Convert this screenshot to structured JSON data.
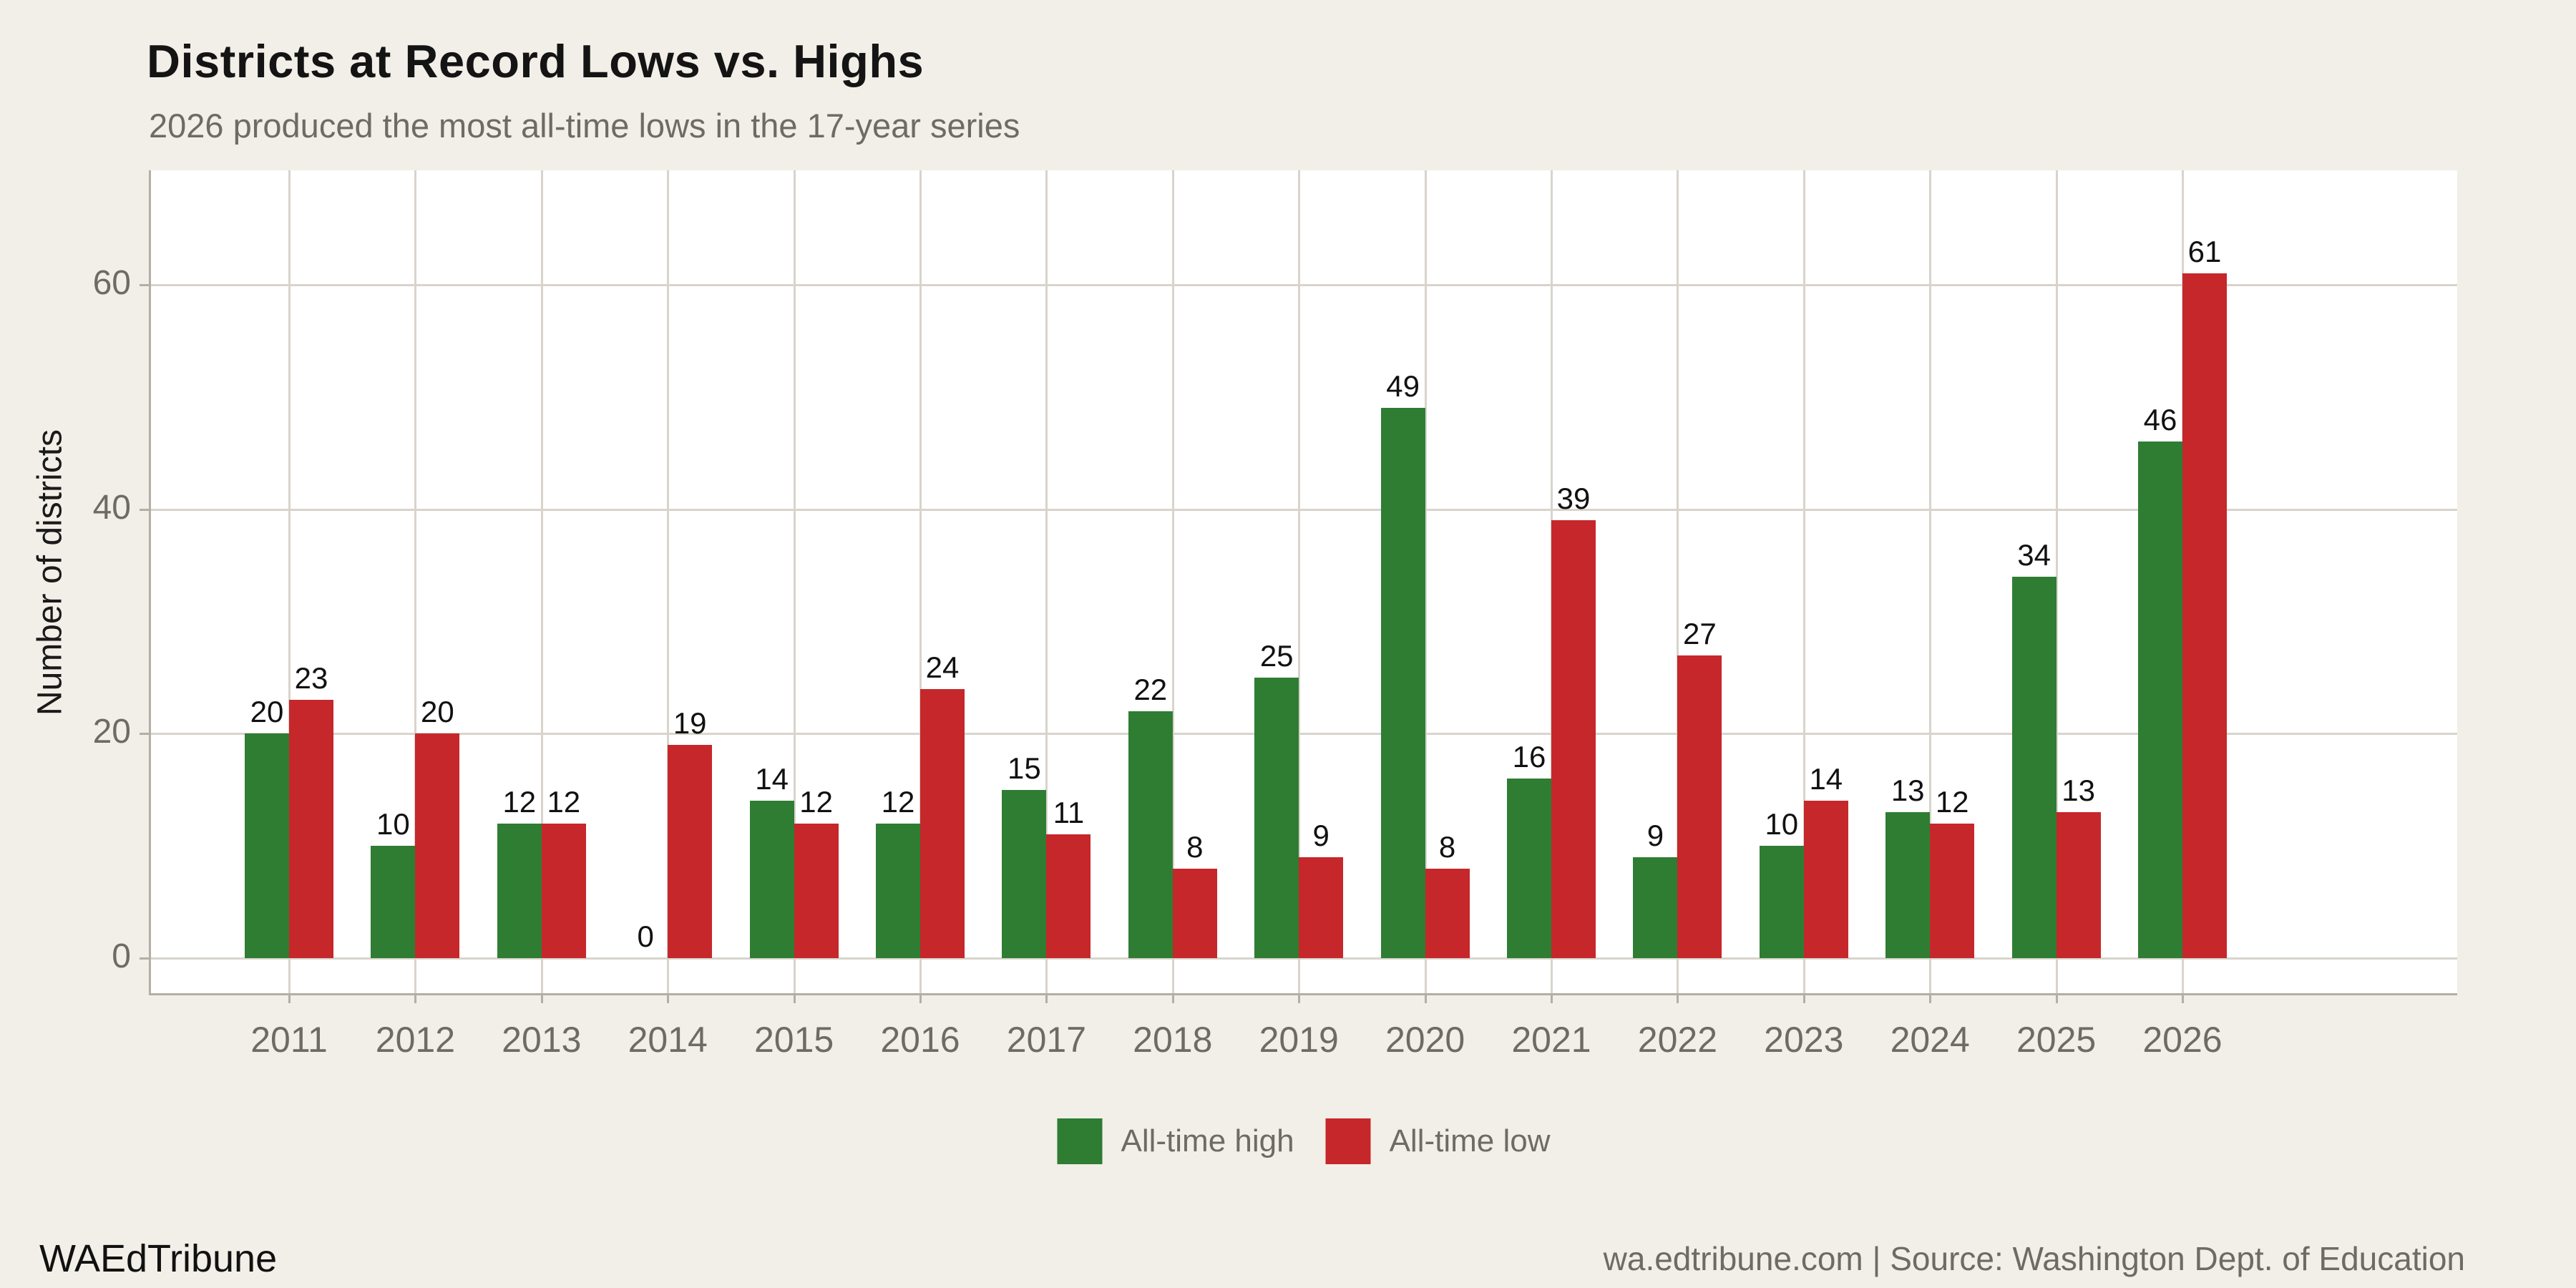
{
  "header": {
    "title": "Districts at Record Lows vs. Highs",
    "subtitle": "2026 produced the most all-time lows in the 17-year series"
  },
  "footer": {
    "brand": "WAEdTribune",
    "attribution": "wa.edtribune.com | Source: Washington Dept. of Education"
  },
  "colors": {
    "background": "#f2efe8",
    "panel": "#ffffff",
    "gridline": "#d8d4cc",
    "axis": "#b3aea6",
    "tick_label": "#6f6b63",
    "value_label": "#111111",
    "high": "#2e7d33",
    "low": "#c6272b"
  },
  "chart_data": {
    "type": "bar",
    "title": "Districts at Record Lows vs. Highs",
    "subtitle": "2026 produced the most all-time lows in the 17-year series",
    "categories": [
      "2011",
      "2012",
      "2013",
      "2014",
      "2015",
      "2016",
      "2017",
      "2018",
      "2019",
      "2020",
      "2021",
      "2022",
      "2023",
      "2024",
      "2025",
      "2026"
    ],
    "series": [
      {
        "name": "All-time high",
        "color": "#2e7d33",
        "values": [
          20,
          10,
          12,
          0,
          14,
          12,
          15,
          22,
          25,
          49,
          16,
          9,
          10,
          13,
          34,
          46
        ]
      },
      {
        "name": "All-time low",
        "color": "#c6272b",
        "values": [
          23,
          20,
          12,
          19,
          12,
          24,
          11,
          8,
          9,
          8,
          39,
          27,
          14,
          12,
          13,
          61
        ]
      }
    ],
    "xlabel": "",
    "ylabel": "Number of districts",
    "yticks": [
      0,
      20,
      40,
      60
    ],
    "ylim": [
      0,
      70
    ],
    "grid": true,
    "bar_value_labels": true,
    "legend_position": "bottom-center"
  }
}
